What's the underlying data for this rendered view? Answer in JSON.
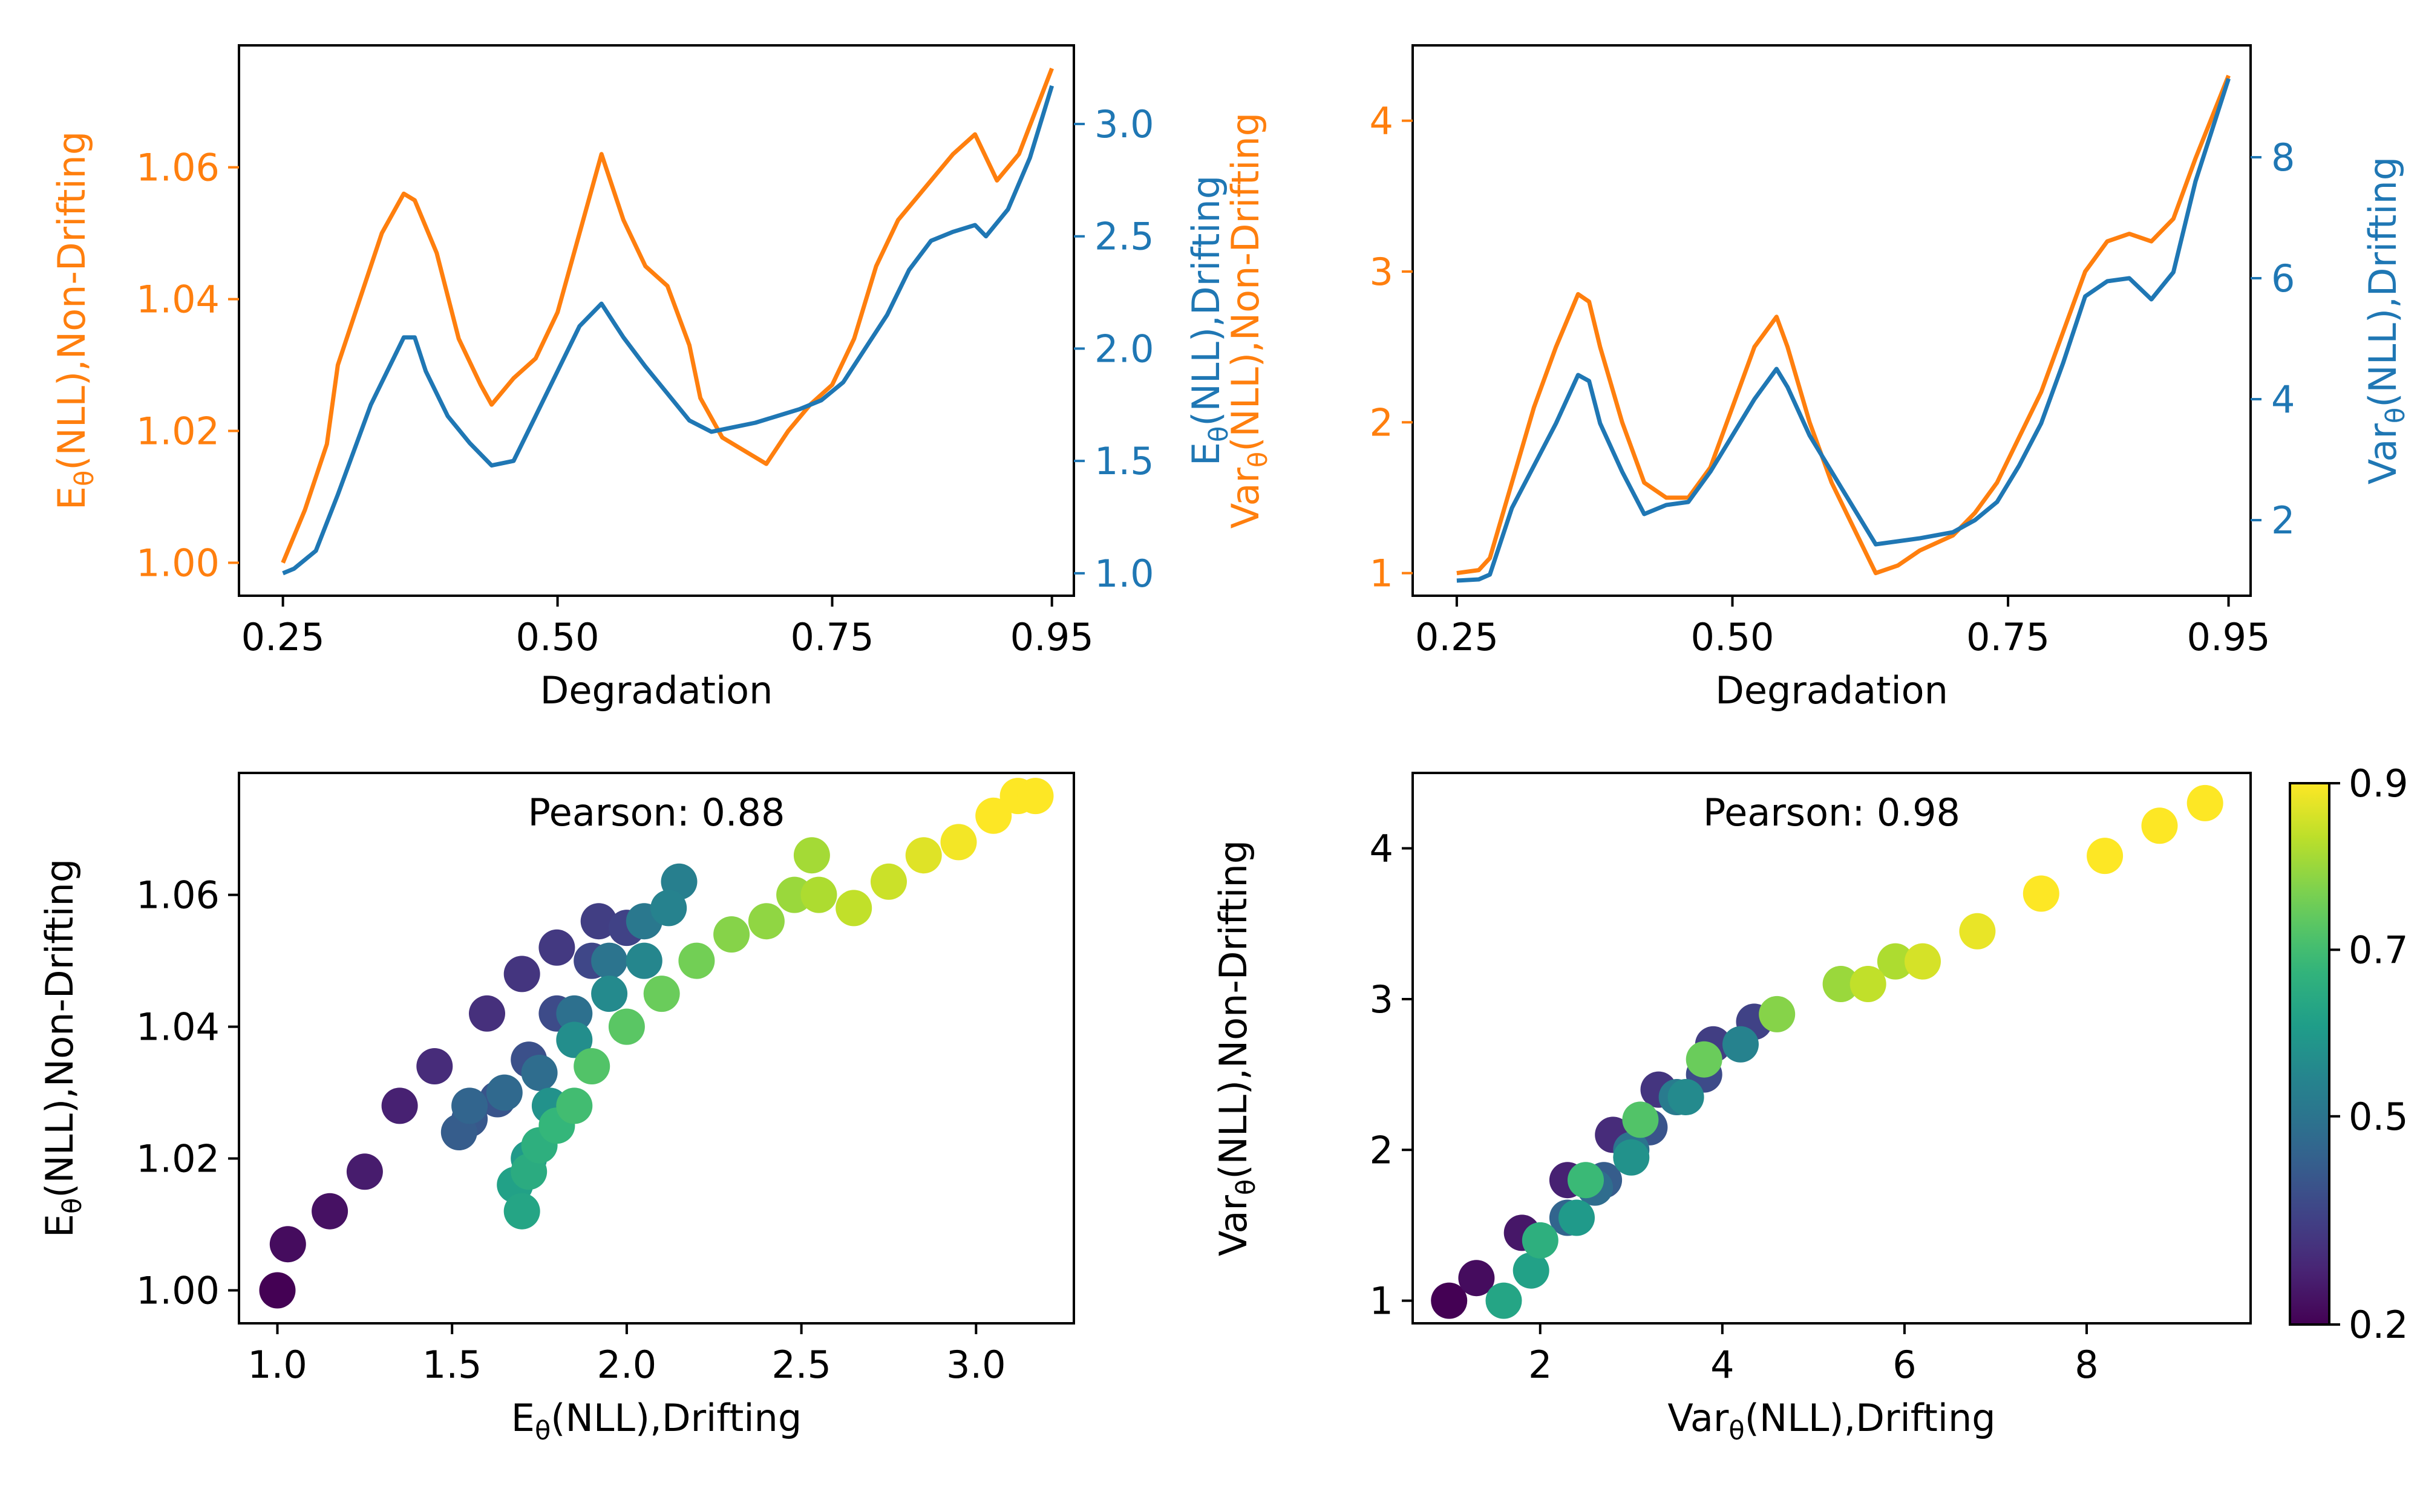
{
  "colors": {
    "non_drifting": "#ff7f0e",
    "drifting": "#1f77b4",
    "axis": "#000000",
    "viridis": [
      "#440154",
      "#482878",
      "#3e4989",
      "#31688e",
      "#26828e",
      "#1f9e89",
      "#35b779",
      "#6ece58",
      "#b5de2b",
      "#fde725"
    ]
  },
  "chart_data": [
    {
      "type": "line",
      "panel": "top-left",
      "xlabel": "Degradation",
      "ylabel": "E_θ(NLL),Non-Drifting",
      "ylabel2": "E_θ(NLL),Drifting",
      "xlim": [
        0.21,
        0.97
      ],
      "ylim": [
        0.995,
        1.0785
      ],
      "ylim2": [
        0.9,
        3.35
      ],
      "xticks": [
        "0.25",
        "0.50",
        "0.75",
        "0.95"
      ],
      "yticks": [
        "1.00",
        "1.02",
        "1.04",
        "1.06"
      ],
      "yticks2": [
        "1.0",
        "1.5",
        "2.0",
        "2.5",
        "3.0"
      ],
      "series": [
        {
          "axis": "left",
          "x": [
            0.25,
            0.27,
            0.29,
            0.3,
            0.32,
            0.34,
            0.36,
            0.37,
            0.39,
            0.41,
            0.43,
            0.44,
            0.46,
            0.48,
            0.5,
            0.52,
            0.54,
            0.56,
            0.58,
            0.6,
            0.62,
            0.63,
            0.65,
            0.67,
            0.69,
            0.71,
            0.73,
            0.75,
            0.77,
            0.79,
            0.81,
            0.83,
            0.85,
            0.86,
            0.88,
            0.9,
            0.92,
            0.95
          ],
          "y": [
            1.0,
            1.008,
            1.018,
            1.03,
            1.04,
            1.05,
            1.056,
            1.055,
            1.047,
            1.034,
            1.027,
            1.024,
            1.028,
            1.031,
            1.038,
            1.05,
            1.062,
            1.052,
            1.045,
            1.042,
            1.033,
            1.025,
            1.019,
            1.017,
            1.015,
            1.02,
            1.024,
            1.027,
            1.034,
            1.045,
            1.052,
            1.056,
            1.06,
            1.062,
            1.065,
            1.058,
            1.062,
            1.075
          ]
        },
        {
          "axis": "right",
          "x": [
            0.25,
            0.26,
            0.28,
            0.3,
            0.33,
            0.36,
            0.37,
            0.38,
            0.4,
            0.42,
            0.44,
            0.46,
            0.48,
            0.5,
            0.52,
            0.54,
            0.56,
            0.58,
            0.6,
            0.62,
            0.64,
            0.66,
            0.68,
            0.7,
            0.72,
            0.74,
            0.76,
            0.78,
            0.8,
            0.82,
            0.84,
            0.86,
            0.88,
            0.89,
            0.91,
            0.93,
            0.95
          ],
          "y": [
            1.0,
            1.02,
            1.1,
            1.35,
            1.75,
            2.05,
            2.05,
            1.9,
            1.7,
            1.58,
            1.48,
            1.5,
            1.7,
            1.9,
            2.1,
            2.2,
            2.05,
            1.92,
            1.8,
            1.68,
            1.63,
            1.65,
            1.67,
            1.7,
            1.73,
            1.77,
            1.85,
            2.0,
            2.15,
            2.35,
            2.48,
            2.52,
            2.55,
            2.5,
            2.62,
            2.85,
            3.17
          ]
        }
      ]
    },
    {
      "type": "line",
      "panel": "top-right",
      "xlabel": "Degradation",
      "ylabel": "Var_θ(NLL),Non-Drifting",
      "ylabel2": "Var_θ(NLL),Drifting",
      "xlim": [
        0.21,
        0.97
      ],
      "ylim": [
        0.85,
        4.5
      ],
      "ylim2": [
        0.75,
        9.85
      ],
      "xticks": [
        "0.25",
        "0.50",
        "0.75",
        "0.95"
      ],
      "yticks": [
        "1",
        "2",
        "3",
        "4"
      ],
      "yticks2": [
        "2",
        "4",
        "6",
        "8"
      ],
      "series": [
        {
          "axis": "left",
          "x": [
            0.25,
            0.27,
            0.28,
            0.3,
            0.32,
            0.34,
            0.36,
            0.37,
            0.38,
            0.4,
            0.42,
            0.44,
            0.46,
            0.48,
            0.5,
            0.52,
            0.54,
            0.55,
            0.57,
            0.59,
            0.61,
            0.63,
            0.65,
            0.67,
            0.7,
            0.72,
            0.74,
            0.76,
            0.78,
            0.8,
            0.82,
            0.84,
            0.86,
            0.88,
            0.9,
            0.92,
            0.95
          ],
          "y": [
            1.0,
            1.02,
            1.1,
            1.6,
            2.1,
            2.5,
            2.85,
            2.8,
            2.5,
            2.0,
            1.6,
            1.5,
            1.5,
            1.7,
            2.1,
            2.5,
            2.7,
            2.5,
            2.0,
            1.6,
            1.3,
            1.0,
            1.05,
            1.15,
            1.25,
            1.4,
            1.6,
            1.9,
            2.2,
            2.6,
            3.0,
            3.2,
            3.25,
            3.2,
            3.35,
            3.75,
            4.3
          ]
        },
        {
          "axis": "right",
          "x": [
            0.25,
            0.27,
            0.28,
            0.3,
            0.32,
            0.34,
            0.36,
            0.37,
            0.38,
            0.4,
            0.42,
            0.44,
            0.46,
            0.48,
            0.5,
            0.52,
            0.54,
            0.55,
            0.57,
            0.59,
            0.61,
            0.63,
            0.65,
            0.67,
            0.7,
            0.72,
            0.74,
            0.76,
            0.78,
            0.8,
            0.82,
            0.84,
            0.86,
            0.88,
            0.9,
            0.92,
            0.95
          ],
          "y": [
            1.0,
            1.02,
            1.1,
            2.2,
            2.9,
            3.6,
            4.4,
            4.3,
            3.6,
            2.8,
            2.1,
            2.25,
            2.3,
            2.8,
            3.4,
            4.0,
            4.5,
            4.2,
            3.4,
            2.8,
            2.2,
            1.6,
            1.65,
            1.7,
            1.8,
            2.0,
            2.3,
            2.9,
            3.6,
            4.6,
            5.7,
            5.95,
            6.0,
            5.65,
            6.1,
            7.6,
            9.3
          ]
        }
      ]
    },
    {
      "type": "scatter",
      "panel": "bottom-left",
      "xlabel": "E_θ(NLL),Drifting",
      "ylabel": "E_θ(NLL),Non-Drifting",
      "annotation": "Pearson: 0.88",
      "xlim": [
        0.89,
        3.28
      ],
      "ylim": [
        0.995,
        1.0785
      ],
      "xticks": [
        "1.0",
        "1.5",
        "2.0",
        "2.5",
        "3.0"
      ],
      "yticks": [
        "1.00",
        "1.02",
        "1.04",
        "1.06"
      ],
      "colorby": "degradation",
      "points": [
        [
          1.0,
          1.0,
          0.25
        ],
        [
          1.03,
          1.007,
          0.27
        ],
        [
          1.15,
          1.012,
          0.28
        ],
        [
          1.25,
          1.018,
          0.3
        ],
        [
          1.35,
          1.028,
          0.31
        ],
        [
          1.45,
          1.034,
          0.33
        ],
        [
          1.6,
          1.042,
          0.34
        ],
        [
          1.7,
          1.048,
          0.35
        ],
        [
          1.8,
          1.052,
          0.36
        ],
        [
          1.92,
          1.056,
          0.37
        ],
        [
          2.0,
          1.055,
          0.38
        ],
        [
          1.9,
          1.05,
          0.39
        ],
        [
          1.8,
          1.042,
          0.4
        ],
        [
          1.72,
          1.035,
          0.41
        ],
        [
          1.63,
          1.029,
          0.42
        ],
        [
          1.55,
          1.026,
          0.43
        ],
        [
          1.52,
          1.024,
          0.44
        ],
        [
          1.55,
          1.028,
          0.46
        ],
        [
          1.65,
          1.03,
          0.47
        ],
        [
          1.75,
          1.033,
          0.48
        ],
        [
          1.85,
          1.042,
          0.49
        ],
        [
          1.95,
          1.05,
          0.5
        ],
        [
          2.05,
          1.056,
          0.51
        ],
        [
          2.15,
          1.062,
          0.53
        ],
        [
          2.12,
          1.058,
          0.54
        ],
        [
          2.05,
          1.05,
          0.55
        ],
        [
          1.95,
          1.045,
          0.56
        ],
        [
          1.85,
          1.038,
          0.57
        ],
        [
          1.78,
          1.028,
          0.58
        ],
        [
          1.72,
          1.02,
          0.6
        ],
        [
          1.68,
          1.016,
          0.62
        ],
        [
          1.7,
          1.012,
          0.63
        ],
        [
          1.72,
          1.018,
          0.65
        ],
        [
          1.75,
          1.022,
          0.66
        ],
        [
          1.8,
          1.025,
          0.68
        ],
        [
          1.85,
          1.028,
          0.7
        ],
        [
          1.9,
          1.034,
          0.72
        ],
        [
          2.0,
          1.04,
          0.73
        ],
        [
          2.1,
          1.045,
          0.75
        ],
        [
          2.2,
          1.05,
          0.76
        ],
        [
          2.3,
          1.054,
          0.78
        ],
        [
          2.4,
          1.056,
          0.79
        ],
        [
          2.48,
          1.06,
          0.8
        ],
        [
          2.53,
          1.066,
          0.81
        ],
        [
          2.55,
          1.06,
          0.82
        ],
        [
          2.65,
          1.058,
          0.84
        ],
        [
          2.75,
          1.062,
          0.85
        ],
        [
          2.85,
          1.066,
          0.87
        ],
        [
          2.95,
          1.068,
          0.89
        ],
        [
          3.05,
          1.072,
          0.91
        ],
        [
          3.12,
          1.075,
          0.93
        ],
        [
          3.17,
          1.075,
          0.95
        ]
      ]
    },
    {
      "type": "scatter",
      "panel": "bottom-right",
      "xlabel": "Var_θ(NLL),Drifting",
      "ylabel": "Var_θ(NLL),Non-Drifting",
      "annotation": "Pearson: 0.98",
      "xlim": [
        0.6,
        9.8
      ],
      "ylim": [
        0.85,
        4.5
      ],
      "xticks": [
        "2",
        "4",
        "6",
        "8"
      ],
      "yticks": [
        "1",
        "2",
        "3",
        "4"
      ],
      "colorby": "degradation",
      "points": [
        [
          1.0,
          1.0,
          0.25
        ],
        [
          1.3,
          1.15,
          0.27
        ],
        [
          1.8,
          1.45,
          0.29
        ],
        [
          2.3,
          1.8,
          0.31
        ],
        [
          2.8,
          2.1,
          0.33
        ],
        [
          3.3,
          2.4,
          0.35
        ],
        [
          3.9,
          2.7,
          0.37
        ],
        [
          4.35,
          2.85,
          0.38
        ],
        [
          3.8,
          2.5,
          0.4
        ],
        [
          3.2,
          2.15,
          0.42
        ],
        [
          2.7,
          1.8,
          0.44
        ],
        [
          2.3,
          1.55,
          0.46
        ],
        [
          2.6,
          1.75,
          0.48
        ],
        [
          3.0,
          2.0,
          0.5
        ],
        [
          3.5,
          2.35,
          0.52
        ],
        [
          4.2,
          2.7,
          0.54
        ],
        [
          3.6,
          2.35,
          0.56
        ],
        [
          3.0,
          1.95,
          0.58
        ],
        [
          2.4,
          1.55,
          0.6
        ],
        [
          1.9,
          1.2,
          0.62
        ],
        [
          1.6,
          1.0,
          0.63
        ],
        [
          2.0,
          1.4,
          0.66
        ],
        [
          2.5,
          1.8,
          0.69
        ],
        [
          3.1,
          2.2,
          0.72
        ],
        [
          3.8,
          2.6,
          0.75
        ],
        [
          4.6,
          2.9,
          0.78
        ],
        [
          5.3,
          3.1,
          0.8
        ],
        [
          5.9,
          3.25,
          0.82
        ],
        [
          5.6,
          3.1,
          0.84
        ],
        [
          6.2,
          3.25,
          0.86
        ],
        [
          6.8,
          3.45,
          0.88
        ],
        [
          7.5,
          3.7,
          0.9
        ],
        [
          8.2,
          3.95,
          0.92
        ],
        [
          8.8,
          4.15,
          0.94
        ],
        [
          9.3,
          4.3,
          0.95
        ]
      ]
    }
  ],
  "colorbar": {
    "tick_labels": [
      "0.9",
      "0.7",
      "0.5",
      "0.2"
    ],
    "tick_values": [
      0.9,
      0.7,
      0.5,
      0.25
    ],
    "range": [
      0.25,
      0.9
    ]
  }
}
